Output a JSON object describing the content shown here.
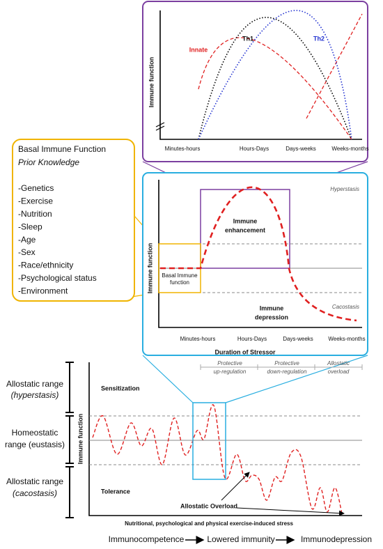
{
  "innate_adaptive": {
    "y_axis_label": "Immune function",
    "curve_labels": [
      "Innate",
      "Th1",
      "Th2"
    ],
    "x_labels": [
      "Minutes-hours",
      "Hours-Days",
      "Days-weeks",
      "Weeks-months"
    ]
  },
  "basal": {
    "title": "Basal Immune Function",
    "subtitle": "Prior Knowledge",
    "items": [
      "-Genetics",
      "-Exercise",
      "-Nutrition",
      "-Sleep",
      "-Age",
      "-Sex",
      "-Race/ethnicity",
      "-Psychological status",
      "-Environment"
    ]
  },
  "stressor": {
    "y_axis_label": "Immune function",
    "hyperstasis": "Hyperstasis",
    "cacostasis": "Cacostasis",
    "enhancement": [
      "Immune",
      "enhancement"
    ],
    "depression": [
      "Immune",
      "depression"
    ],
    "basal": [
      "Basal Immune",
      "function"
    ],
    "x_labels": [
      "Minutes-hours",
      "Hours-Days",
      "Days-weeks",
      "Weeks-months"
    ],
    "x_axis_label": "Duration of Stressor",
    "phases": [
      [
        "Protective",
        "up-regulation"
      ],
      [
        "Protective",
        "down-regulation"
      ],
      [
        "Allostatic",
        "overload"
      ]
    ]
  },
  "allostasis": {
    "ranges": [
      [
        "Allostatic range",
        "(hyperstasis)"
      ],
      [
        "Homeostatic",
        "range (eustasis)"
      ],
      [
        "Allostatic range",
        "(cacostasis)"
      ]
    ],
    "sensitization": "Sensitization",
    "tolerance": "Tolerance",
    "overload": "Allostatic Overload",
    "y_axis_label": "Immune function",
    "x_axis_label": "Nutritional, psychological and physical exercise-induced stress"
  },
  "footer": {
    "stages": [
      "Immunocompetence",
      "Lowered immunity",
      "Immunodepression"
    ]
  }
}
